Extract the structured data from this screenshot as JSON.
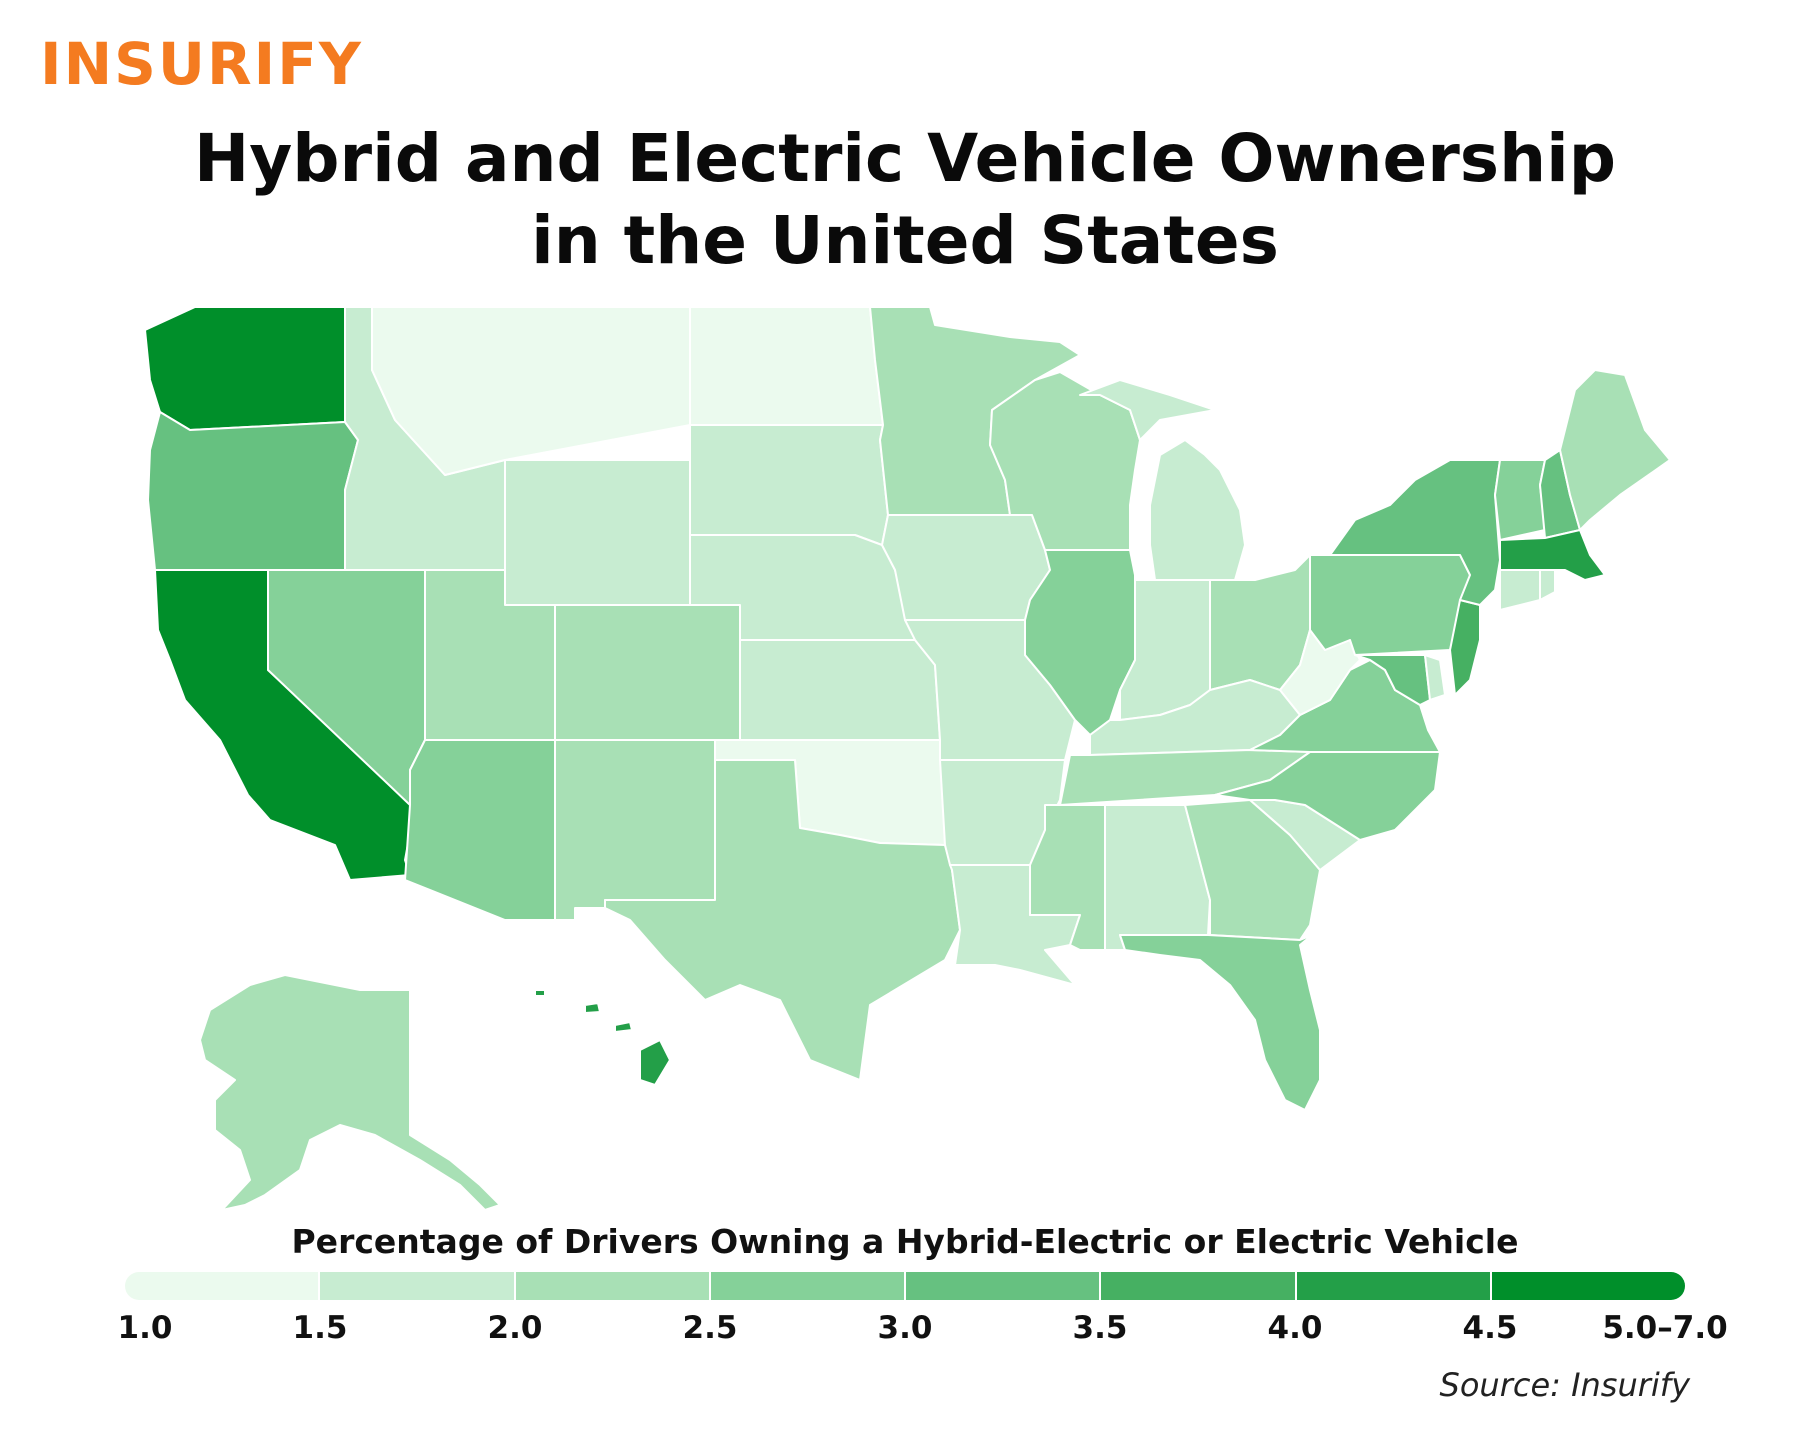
{
  "logo": {
    "text": "INSURIFY",
    "color": "#f47b20"
  },
  "title": {
    "line1": "Hybrid and Electric Vehicle Ownership",
    "line2": "in the United States"
  },
  "legend": {
    "title": "Percentage of Drivers Owning a Hybrid-Electric or Electric Vehicle",
    "ticks": [
      "1.0",
      "1.5",
      "2.0",
      "2.5",
      "3.0",
      "3.5",
      "4.0",
      "4.5",
      "5.0–7.0"
    ],
    "colors": [
      "#ebfaee",
      "#c7ecd1",
      "#a8e0b5",
      "#85d199",
      "#66c180",
      "#46b062",
      "#239f48",
      "#008f2a"
    ]
  },
  "source": "Source: Insurify",
  "map_data": {
    "states": [
      {
        "state": "WA",
        "bin": 7
      },
      {
        "state": "OR",
        "bin": 4
      },
      {
        "state": "CA",
        "bin": 7
      },
      {
        "state": "NV",
        "bin": 3
      },
      {
        "state": "ID",
        "bin": 1
      },
      {
        "state": "MT",
        "bin": 0
      },
      {
        "state": "WY",
        "bin": 1
      },
      {
        "state": "UT",
        "bin": 2
      },
      {
        "state": "AZ",
        "bin": 3
      },
      {
        "state": "CO",
        "bin": 2
      },
      {
        "state": "NM",
        "bin": 2
      },
      {
        "state": "ND",
        "bin": 0
      },
      {
        "state": "SD",
        "bin": 1
      },
      {
        "state": "NE",
        "bin": 1
      },
      {
        "state": "KS",
        "bin": 1
      },
      {
        "state": "OK",
        "bin": 0
      },
      {
        "state": "TX",
        "bin": 2
      },
      {
        "state": "MN",
        "bin": 2
      },
      {
        "state": "IA",
        "bin": 1
      },
      {
        "state": "MO",
        "bin": 1
      },
      {
        "state": "AR",
        "bin": 1
      },
      {
        "state": "LA",
        "bin": 1
      },
      {
        "state": "WI",
        "bin": 2
      },
      {
        "state": "IL",
        "bin": 3
      },
      {
        "state": "MI",
        "bin": 1
      },
      {
        "state": "IN",
        "bin": 1
      },
      {
        "state": "OH",
        "bin": 2
      },
      {
        "state": "KY",
        "bin": 1
      },
      {
        "state": "TN",
        "bin": 2
      },
      {
        "state": "MS",
        "bin": 2
      },
      {
        "state": "AL",
        "bin": 1
      },
      {
        "state": "GA",
        "bin": 2
      },
      {
        "state": "FL",
        "bin": 3
      },
      {
        "state": "SC",
        "bin": 1
      },
      {
        "state": "NC",
        "bin": 3
      },
      {
        "state": "VA",
        "bin": 3
      },
      {
        "state": "WV",
        "bin": 0
      },
      {
        "state": "PA",
        "bin": 3
      },
      {
        "state": "NY",
        "bin": 4
      },
      {
        "state": "MD",
        "bin": 4
      },
      {
        "state": "DE",
        "bin": 1
      },
      {
        "state": "NJ",
        "bin": 5
      },
      {
        "state": "CT",
        "bin": 1
      },
      {
        "state": "RI",
        "bin": 1
      },
      {
        "state": "MA",
        "bin": 6
      },
      {
        "state": "VT",
        "bin": 3
      },
      {
        "state": "NH",
        "bin": 4
      },
      {
        "state": "ME",
        "bin": 2
      },
      {
        "state": "AK",
        "bin": 2
      },
      {
        "state": "HI",
        "bin": 6
      }
    ]
  }
}
